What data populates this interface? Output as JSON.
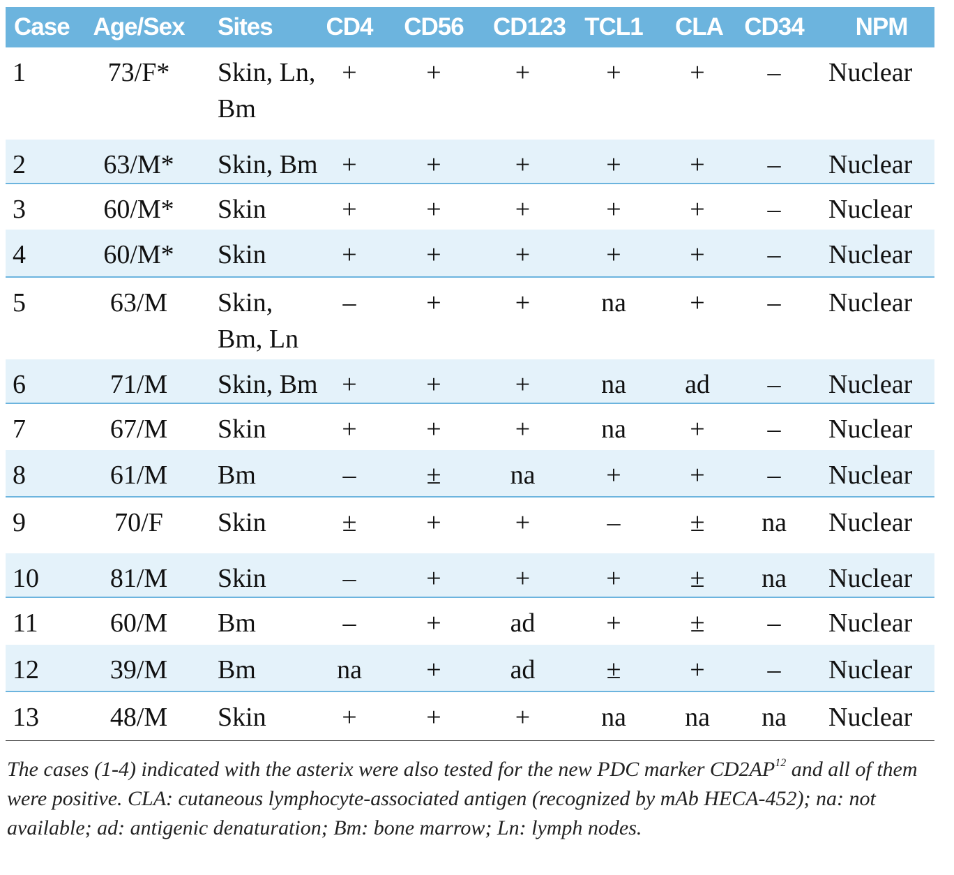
{
  "table": {
    "header": [
      "Case",
      "Age/Sex",
      "Sites",
      "CD4",
      "CD56",
      "CD123",
      "TCL1",
      "CLA",
      "CD34",
      "NPM"
    ],
    "rows": [
      [
        "1",
        "73/F*",
        "Skin, Ln, Bm",
        "+",
        "+",
        "+",
        "+",
        "+",
        "–",
        "Nuclear"
      ],
      [
        "2",
        "63/M*",
        "Skin, Bm",
        "+",
        "+",
        "+",
        "+",
        "+",
        "–",
        "Nuclear"
      ],
      [
        "3",
        "60/M*",
        "Skin",
        "+",
        "+",
        "+",
        "+",
        "+",
        "–",
        "Nuclear"
      ],
      [
        "4",
        "60/M*",
        "Skin",
        "+",
        "+",
        "+",
        "+",
        "+",
        "–",
        "Nuclear"
      ],
      [
        "5",
        "63/M",
        "Skin, Bm, Ln",
        "–",
        "+",
        "+",
        "na",
        "+",
        "–",
        "Nuclear"
      ],
      [
        "6",
        "71/M",
        "Skin, Bm",
        "+",
        "+",
        "+",
        "na",
        "ad",
        "–",
        "Nuclear"
      ],
      [
        "7",
        "67/M",
        "Skin",
        "+",
        "+",
        "+",
        "na",
        "+",
        "–",
        "Nuclear"
      ],
      [
        "8",
        "61/M",
        "Bm",
        "–",
        "±",
        "na",
        "+",
        "+",
        "–",
        "Nuclear"
      ],
      [
        "9",
        "70/F",
        "Skin",
        "±",
        "+",
        "+",
        "–",
        "±",
        "na",
        "Nuclear"
      ],
      [
        "10",
        "81/M",
        "Skin",
        "–",
        "+",
        "+",
        "+",
        "±",
        "na",
        "Nuclear"
      ],
      [
        "11",
        "60/M",
        "Bm",
        "–",
        "+",
        "ad",
        "+",
        "±",
        "–",
        "Nuclear"
      ],
      [
        "12",
        "39/M",
        "Bm",
        "na",
        "+",
        "ad",
        "±",
        "+",
        "–",
        "Nuclear"
      ],
      [
        "13",
        "48/M",
        "Skin",
        "+",
        "+",
        "+",
        "na",
        "na",
        "na",
        "Nuclear"
      ]
    ]
  },
  "footnote": {
    "text": "The cases (1-4) indicated with the asterix were also tested for the new PDC marker CD2AP",
    "ref": "12",
    "rest": " and all of them were positive. CLA: cutaneous lymphocyte-associated antigen (recognized by mAb HECA-452); na: not available; ad: antigenic denaturation; Bm: bone marrow; Ln: lymph nodes."
  }
}
